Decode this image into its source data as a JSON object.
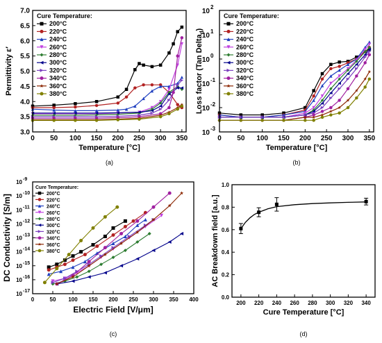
{
  "chart_data": [
    {
      "id": "a",
      "type": "line",
      "caption": "(a)",
      "xlabel": "Temperature [°C]",
      "ylabel": "Permittivity ε′",
      "xlim": [
        0,
        360
      ],
      "ylim": [
        3.0,
        7.0
      ],
      "xticks": [
        0,
        50,
        100,
        150,
        200,
        250,
        300,
        350
      ],
      "yticks": [
        3.0,
        3.5,
        4.0,
        4.5,
        5.0,
        5.5,
        6.0,
        6.5,
        7.0
      ],
      "legend_title": "Cure Temperature:",
      "legend_position": "top-left",
      "series": [
        {
          "name": "200°C",
          "color": "#000000",
          "marker": "square",
          "x": [
            0,
            50,
            100,
            150,
            200,
            220,
            240,
            250,
            260,
            280,
            300,
            320,
            330,
            340,
            350
          ],
          "y": [
            3.85,
            3.88,
            3.93,
            4.0,
            4.15,
            4.4,
            5.05,
            5.25,
            5.2,
            5.15,
            5.2,
            5.6,
            5.9,
            6.3,
            6.45
          ]
        },
        {
          "name": "220°C",
          "color": "#b22222",
          "marker": "circle",
          "x": [
            0,
            50,
            100,
            150,
            200,
            220,
            240,
            260,
            280,
            300,
            320,
            340,
            350
          ],
          "y": [
            3.8,
            3.8,
            3.82,
            3.87,
            3.95,
            4.15,
            4.45,
            4.55,
            4.55,
            4.55,
            4.3,
            3.9,
            3.8
          ]
        },
        {
          "name": "240°C",
          "color": "#1f3fbf",
          "marker": "triangle-up",
          "x": [
            0,
            50,
            100,
            150,
            200,
            220,
            240,
            260,
            280,
            300,
            320,
            340,
            350
          ],
          "y": [
            3.75,
            3.72,
            3.7,
            3.7,
            3.72,
            3.75,
            3.85,
            4.1,
            4.35,
            4.5,
            4.5,
            4.6,
            4.8
          ]
        },
        {
          "name": "260°C",
          "color": "#c040e0",
          "marker": "triangle-down",
          "x": [
            0,
            50,
            100,
            150,
            200,
            250,
            280,
            300,
            320,
            340,
            350
          ],
          "y": [
            3.6,
            3.6,
            3.6,
            3.6,
            3.62,
            3.65,
            3.8,
            4.0,
            4.4,
            5.2,
            5.9
          ]
        },
        {
          "name": "280°C",
          "color": "#2e7d32",
          "marker": "diamond",
          "x": [
            0,
            50,
            100,
            150,
            200,
            250,
            280,
            300,
            320,
            340,
            350
          ],
          "y": [
            3.55,
            3.55,
            3.55,
            3.56,
            3.58,
            3.62,
            3.75,
            3.95,
            4.3,
            4.5,
            4.4
          ]
        },
        {
          "name": "300°C",
          "color": "#00008b",
          "marker": "triangle-left",
          "x": [
            0,
            50,
            100,
            150,
            200,
            250,
            280,
            300,
            320,
            340,
            350
          ],
          "y": [
            3.62,
            3.62,
            3.62,
            3.62,
            3.63,
            3.65,
            3.7,
            3.85,
            4.25,
            4.45,
            4.45
          ]
        },
        {
          "name": "320°C",
          "color": "#7b3fbf",
          "marker": "triangle-right",
          "x": [
            0,
            50,
            100,
            150,
            200,
            250,
            280,
            300,
            320,
            340,
            350
          ],
          "y": [
            3.5,
            3.5,
            3.5,
            3.5,
            3.52,
            3.55,
            3.62,
            3.75,
            4.05,
            4.55,
            4.7
          ]
        },
        {
          "name": "340°C",
          "color": "#a020a0",
          "marker": "circle",
          "x": [
            0,
            50,
            100,
            150,
            200,
            250,
            300,
            320,
            330,
            340,
            350
          ],
          "y": [
            3.45,
            3.45,
            3.45,
            3.45,
            3.47,
            3.5,
            3.6,
            3.8,
            4.3,
            5.5,
            6.1
          ]
        },
        {
          "name": "360°C",
          "color": "#8b2500",
          "marker": "star",
          "x": [
            0,
            50,
            100,
            150,
            200,
            250,
            300,
            320,
            340,
            350
          ],
          "y": [
            3.4,
            3.4,
            3.4,
            3.4,
            3.42,
            3.45,
            3.55,
            3.65,
            3.8,
            3.9
          ]
        },
        {
          "name": "380°C",
          "color": "#808000",
          "marker": "circle",
          "x": [
            0,
            50,
            100,
            150,
            200,
            250,
            300,
            320,
            340,
            350
          ],
          "y": [
            3.38,
            3.38,
            3.38,
            3.38,
            3.4,
            3.42,
            3.5,
            3.6,
            3.75,
            3.85
          ]
        }
      ]
    },
    {
      "id": "b",
      "type": "line",
      "caption": "(b)",
      "xlabel": "Temperature [°C]",
      "ylabel": "Loss factor (Tan Delta",
      "ylabel_sub": "d",
      "ylabel_end": ")",
      "yscale": "log",
      "xlim": [
        0,
        360
      ],
      "ylim_exp": [
        -3,
        2
      ],
      "xticks": [
        0,
        50,
        100,
        150,
        200,
        250,
        300,
        350
      ],
      "ytick_exponents": [
        -3,
        -2,
        -1,
        0,
        1,
        2
      ],
      "legend_title": "Cure Temperature:",
      "legend_position": "top-left",
      "series": [
        {
          "name": "200°C",
          "x": [
            0,
            50,
            100,
            150,
            200,
            220,
            240,
            260,
            280,
            300,
            320,
            340,
            350
          ],
          "y": [
            0.006,
            0.005,
            0.005,
            0.006,
            0.01,
            0.05,
            0.25,
            0.6,
            0.75,
            0.8,
            1.2,
            2.0,
            2.5
          ]
        },
        {
          "name": "220°C",
          "x": [
            0,
            50,
            100,
            150,
            200,
            220,
            240,
            260,
            280,
            300,
            320,
            340,
            350
          ],
          "y": [
            0.005,
            0.004,
            0.004,
            0.005,
            0.008,
            0.03,
            0.15,
            0.4,
            0.5,
            0.7,
            1.0,
            2.0,
            3.0
          ]
        },
        {
          "name": "240°C",
          "x": [
            0,
            50,
            100,
            150,
            200,
            220,
            240,
            260,
            280,
            300,
            320,
            340,
            350
          ],
          "y": [
            0.005,
            0.004,
            0.004,
            0.005,
            0.007,
            0.02,
            0.08,
            0.2,
            0.35,
            0.6,
            1.0,
            3.0,
            5.0
          ]
        },
        {
          "name": "260°C",
          "x": [
            0,
            50,
            100,
            150,
            200,
            220,
            240,
            260,
            280,
            300,
            320,
            340,
            350
          ],
          "y": [
            0.004,
            0.004,
            0.004,
            0.004,
            0.006,
            0.01,
            0.03,
            0.1,
            0.2,
            0.4,
            0.9,
            2.5,
            4.0
          ]
        },
        {
          "name": "280°C",
          "x": [
            0,
            50,
            100,
            150,
            200,
            220,
            240,
            260,
            280,
            300,
            320,
            340,
            350
          ],
          "y": [
            0.004,
            0.004,
            0.004,
            0.004,
            0.005,
            0.008,
            0.02,
            0.06,
            0.15,
            0.35,
            0.8,
            2.0,
            3.0
          ]
        },
        {
          "name": "300°C",
          "x": [
            0,
            50,
            100,
            150,
            200,
            220,
            240,
            260,
            280,
            300,
            320,
            340,
            350
          ],
          "y": [
            0.004,
            0.004,
            0.004,
            0.004,
            0.005,
            0.007,
            0.015,
            0.04,
            0.1,
            0.25,
            0.6,
            1.5,
            2.5
          ]
        },
        {
          "name": "320°C",
          "x": [
            0,
            50,
            100,
            150,
            200,
            220,
            240,
            260,
            280,
            300,
            320,
            340,
            350
          ],
          "y": [
            0.004,
            0.004,
            0.004,
            0.004,
            0.005,
            0.006,
            0.01,
            0.025,
            0.06,
            0.15,
            0.4,
            1.2,
            2.0
          ]
        },
        {
          "name": "340°C",
          "x": [
            0,
            50,
            100,
            150,
            200,
            220,
            240,
            260,
            280,
            300,
            320,
            340,
            350
          ],
          "y": [
            0.003,
            0.003,
            0.003,
            0.003,
            0.004,
            0.005,
            0.007,
            0.01,
            0.02,
            0.06,
            0.2,
            0.7,
            1.5
          ]
        },
        {
          "name": "360°C",
          "x": [
            0,
            50,
            100,
            150,
            200,
            220,
            240,
            260,
            280,
            300,
            320,
            340,
            350
          ],
          "y": [
            0.003,
            0.003,
            0.003,
            0.003,
            0.004,
            0.004,
            0.005,
            0.007,
            0.01,
            0.02,
            0.05,
            0.15,
            0.3
          ]
        },
        {
          "name": "380°C",
          "x": [
            0,
            50,
            100,
            150,
            200,
            220,
            240,
            260,
            280,
            300,
            320,
            340,
            350
          ],
          "y": [
            0.003,
            0.003,
            0.003,
            0.003,
            0.003,
            0.003,
            0.004,
            0.005,
            0.006,
            0.01,
            0.025,
            0.07,
            0.15
          ]
        }
      ]
    },
    {
      "id": "c",
      "type": "line",
      "caption": "(c)",
      "xlabel": "Electric Field [V/μm]",
      "ylabel": "DC Conductivity [S/m]",
      "yscale": "log",
      "xlim": [
        0,
        400
      ],
      "ylim_exp": [
        -17,
        -9
      ],
      "xticks": [
        0,
        50,
        100,
        150,
        200,
        250,
        300,
        350,
        400
      ],
      "ytick_exponents": [
        -17,
        -16,
        -15,
        -14,
        -13,
        -12,
        -11,
        -10,
        -9
      ],
      "legend_title": "Cure Temperature:",
      "legend_position": "top-left",
      "series": [
        {
          "name": "200°C",
          "x": [
            40,
            60,
            80,
            100,
            120,
            150,
            180,
            200,
            230
          ],
          "y_exp": [
            -15.1,
            -14.9,
            -14.6,
            -14.3,
            -14.0,
            -13.5,
            -12.9,
            -12.3,
            -11.8
          ]
        },
        {
          "name": "220°C",
          "x": [
            40,
            60,
            80,
            100,
            130,
            160,
            200,
            230,
            250,
            280
          ],
          "y_exp": [
            -15.3,
            -15.1,
            -14.9,
            -14.6,
            -14.2,
            -13.6,
            -12.8,
            -12.2,
            -11.8,
            -11.2
          ]
        },
        {
          "name": "240°C",
          "x": [
            40,
            70,
            100,
            130,
            160,
            200,
            230,
            260,
            280
          ],
          "y_exp": [
            -15.6,
            -15.4,
            -15.1,
            -14.7,
            -14.1,
            -13.4,
            -12.9,
            -12.1,
            -11.7
          ]
        },
        {
          "name": "260°C",
          "x": [
            50,
            80,
            110,
            140,
            170,
            200,
            240,
            280,
            320
          ],
          "y_exp": [
            -16.1,
            -15.9,
            -15.5,
            -15.0,
            -14.4,
            -13.8,
            -13.0,
            -12.2,
            -11.4
          ]
        },
        {
          "name": "280°C",
          "x": [
            50,
            80,
            110,
            140,
            170,
            200,
            230,
            260,
            290
          ],
          "y_exp": [
            -16.3,
            -16.1,
            -15.8,
            -15.4,
            -14.9,
            -14.4,
            -13.9,
            -13.3,
            -12.7
          ]
        },
        {
          "name": "300°C",
          "x": [
            60,
            100,
            140,
            180,
            220,
            260,
            300,
            340,
            370
          ],
          "y_exp": [
            -16.3,
            -16.1,
            -15.8,
            -15.5,
            -15.0,
            -14.5,
            -13.9,
            -13.3,
            -12.7
          ]
        },
        {
          "name": "320°C",
          "x": [
            50,
            80,
            110,
            140,
            170,
            200,
            240,
            280,
            300
          ],
          "y_exp": [
            -16.2,
            -15.9,
            -15.4,
            -14.9,
            -14.3,
            -13.7,
            -12.9,
            -12.1,
            -11.7
          ]
        },
        {
          "name": "340°C",
          "x": [
            60,
            100,
            140,
            180,
            220,
            260,
            300,
            340
          ],
          "y_exp": [
            -16.3,
            -15.7,
            -14.7,
            -13.7,
            -12.7,
            -11.8,
            -10.8,
            -9.8
          ]
        },
        {
          "name": "360°C",
          "x": [
            60,
            100,
            140,
            180,
            220,
            260,
            300,
            340,
            370
          ],
          "y_exp": [
            -16.3,
            -15.8,
            -15.0,
            -14.2,
            -13.4,
            -12.6,
            -11.7,
            -10.7,
            -9.8
          ]
        },
        {
          "name": "380°C",
          "x": [
            30,
            60,
            90,
            120,
            150,
            180,
            210
          ],
          "y_exp": [
            -16.2,
            -15.2,
            -14.2,
            -13.2,
            -12.3,
            -11.5,
            -10.8
          ]
        }
      ]
    },
    {
      "id": "d",
      "type": "scatter",
      "caption": "(d)",
      "xlabel": "Cure Temperature [°C]",
      "ylabel": "AC Breakdown field [a.u.]",
      "xlim": [
        190,
        350
      ],
      "ylim": [
        0.0,
        1.0
      ],
      "xticks": [
        200,
        220,
        240,
        260,
        280,
        300,
        320,
        340
      ],
      "yticks": [
        0.0,
        0.2,
        0.4,
        0.6,
        0.8,
        1.0
      ],
      "points": [
        {
          "x": 200,
          "y": 0.61,
          "err": 0.045
        },
        {
          "x": 220,
          "y": 0.755,
          "err": 0.04
        },
        {
          "x": 240,
          "y": 0.825,
          "err": 0.06
        },
        {
          "x": 340,
          "y": 0.85,
          "err": 0.03
        }
      ],
      "fit": {
        "x": [
          200,
          205,
          210,
          215,
          220,
          230,
          240,
          260,
          280,
          300,
          320,
          340
        ],
        "y": [
          0.61,
          0.665,
          0.705,
          0.735,
          0.755,
          0.785,
          0.805,
          0.822,
          0.832,
          0.838,
          0.843,
          0.847
        ]
      }
    }
  ]
}
